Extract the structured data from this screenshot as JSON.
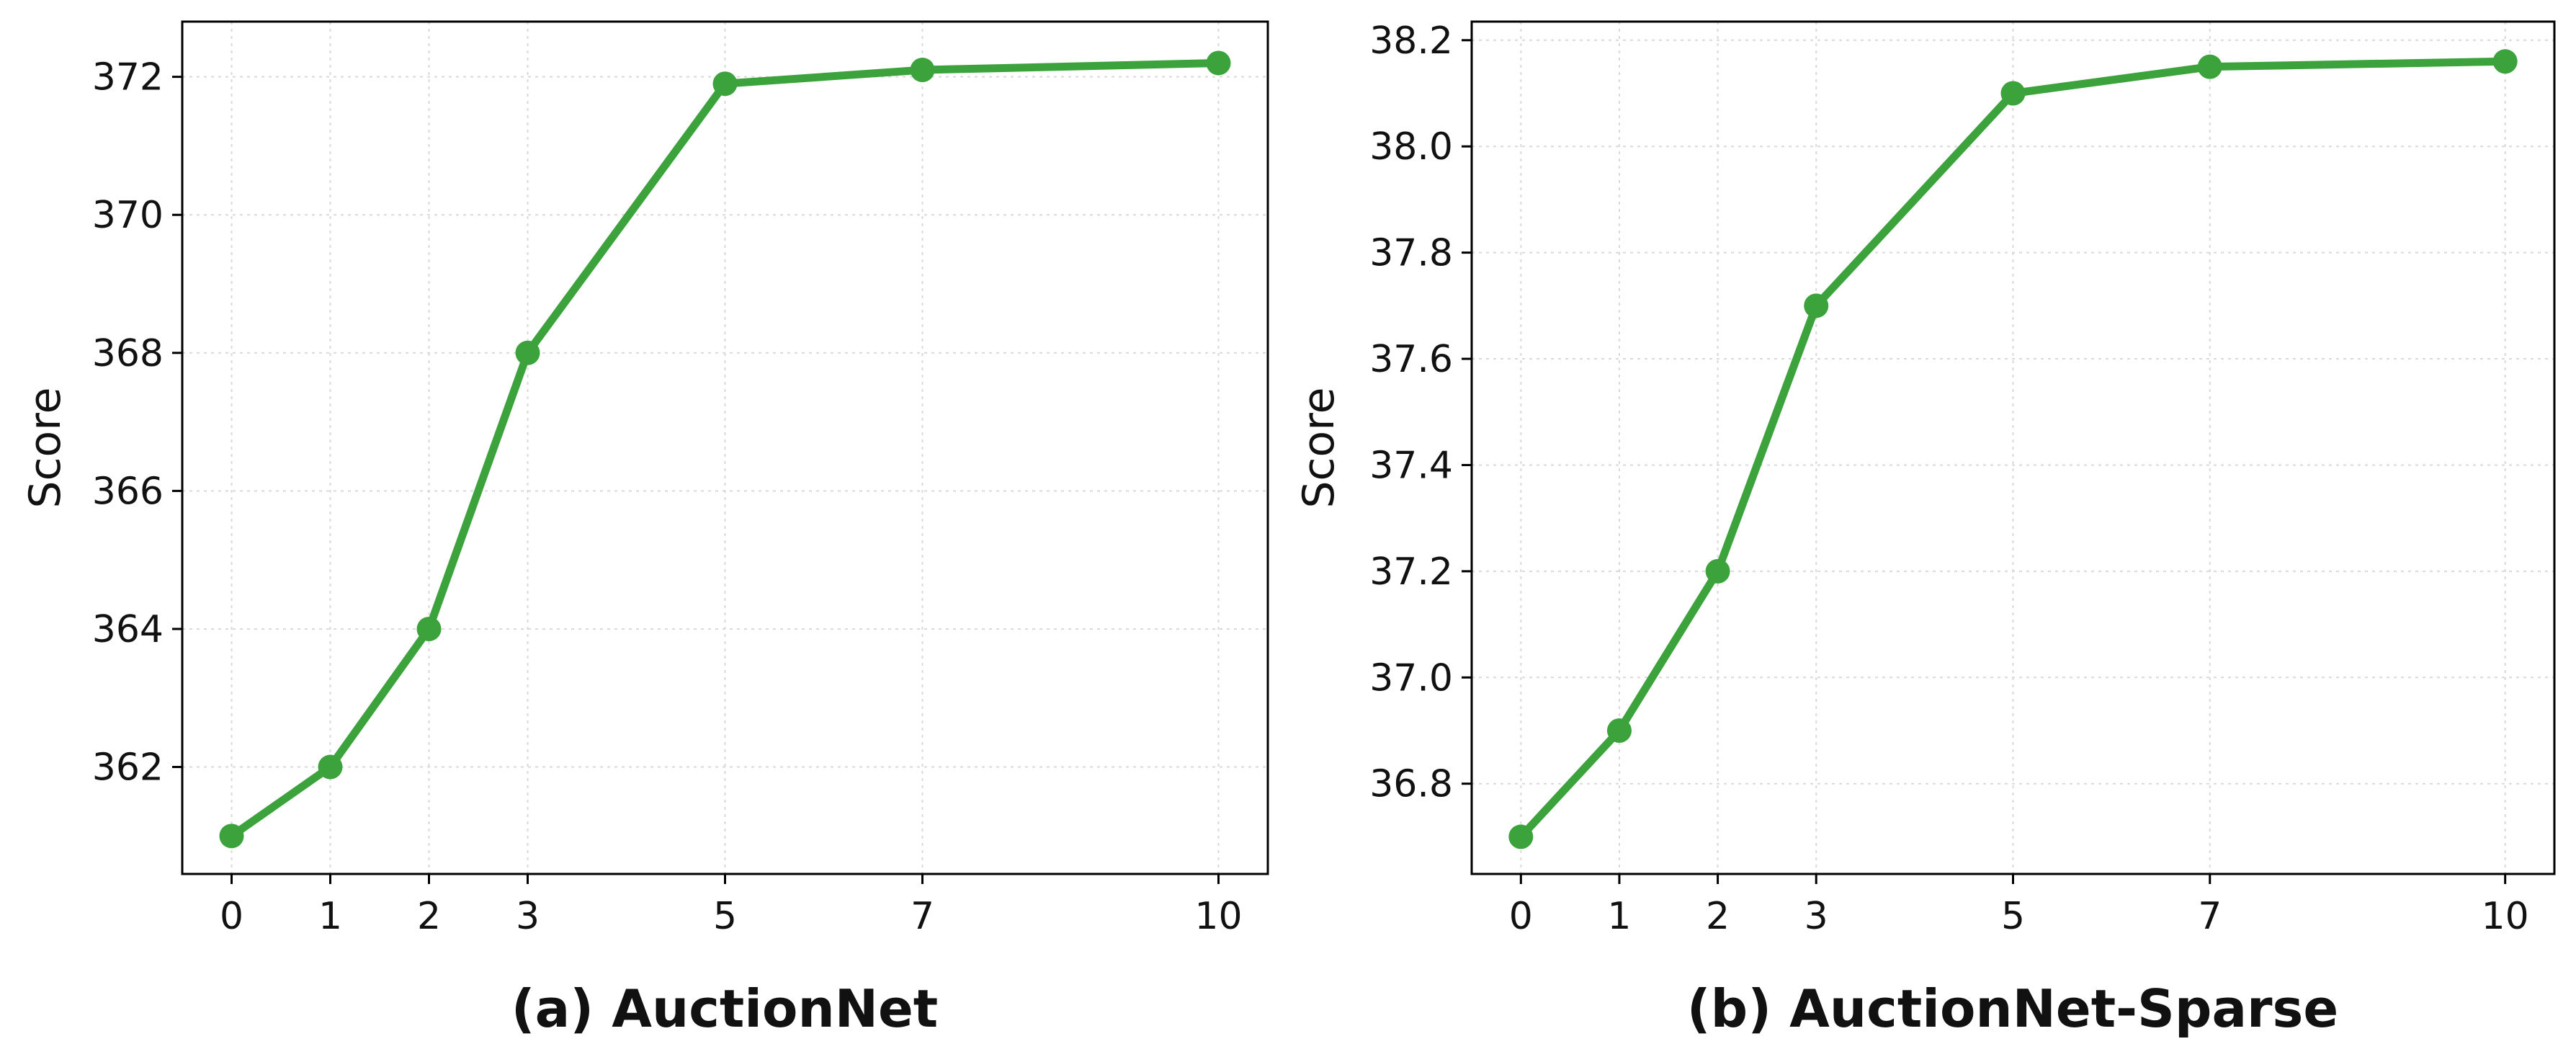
{
  "colors": {
    "line": "#3ca33c"
  },
  "chart_data": [
    {
      "type": "line",
      "title": "(a) AuctionNet",
      "xlabel": "",
      "ylabel": "Score",
      "x": [
        0,
        1,
        2,
        3,
        5,
        7,
        10
      ],
      "xticks": [
        "0",
        "1",
        "2",
        "3",
        "5",
        "7",
        "10"
      ],
      "xlim": [
        -0.5,
        10.5
      ],
      "ylim": [
        360.45,
        372.8
      ],
      "yticks": [
        "362",
        "364",
        "366",
        "368",
        "370",
        "372"
      ],
      "series": [
        {
          "values": [
            361,
            362,
            364,
            368,
            371.9,
            372.1,
            372.2
          ]
        }
      ],
      "grid": true
    },
    {
      "type": "line",
      "title": "(b) AuctionNet-Sparse",
      "xlabel": "",
      "ylabel": "Score",
      "x": [
        0,
        1,
        2,
        3,
        5,
        7,
        10
      ],
      "xticks": [
        "0",
        "1",
        "2",
        "3",
        "5",
        "7",
        "10"
      ],
      "xlim": [
        -0.5,
        10.5
      ],
      "ylim": [
        36.63,
        38.235
      ],
      "yticks": [
        "36.8",
        "37.0",
        "37.2",
        "37.4",
        "37.6",
        "37.8",
        "38.0",
        "38.2"
      ],
      "series": [
        {
          "values": [
            36.7,
            36.9,
            37.2,
            37.7,
            38.1,
            38.15,
            38.16
          ]
        }
      ],
      "grid": true
    }
  ]
}
